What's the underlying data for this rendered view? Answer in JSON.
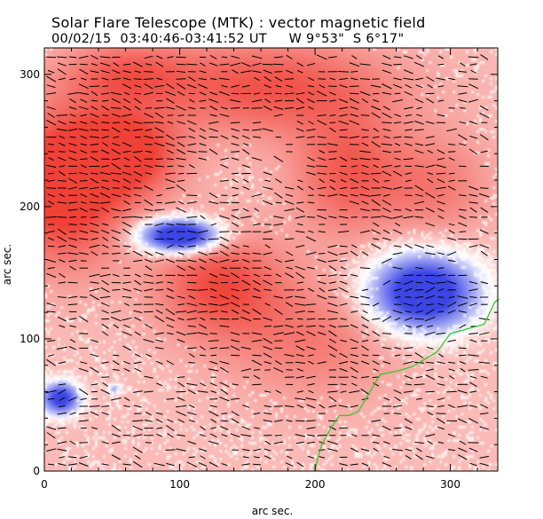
{
  "header": {
    "title": "Solar Flare Telescope (MTK) : vector magnetic field",
    "subtitle": "00/02/15  03:40:46-03:41:52 UT     W 9°53\"  S 6°17\""
  },
  "chart_data": {
    "type": "heatmap",
    "xlabel": "arc sec.",
    "ylabel": "arc sec.",
    "xlim": [
      0,
      335
    ],
    "ylim": [
      0,
      320
    ],
    "x_ticks": [
      0,
      100,
      200,
      300
    ],
    "y_ticks": [
      0,
      100,
      200,
      300
    ],
    "grid": false,
    "colors": {
      "positive_polarity": "#f0463c",
      "negative_polarity": "#3c46e6",
      "background": "#ffffff",
      "vectors": "#000000",
      "neutral_line": "#22cc22"
    },
    "positive_regions": [
      {
        "x": 15,
        "y": 215,
        "sx": 45,
        "sy": 55,
        "strength": 0.95
      },
      {
        "x": 60,
        "y": 240,
        "sx": 40,
        "sy": 30,
        "strength": 0.8
      },
      {
        "x": 130,
        "y": 140,
        "sx": 45,
        "sy": 40,
        "strength": 0.65
      },
      {
        "x": 165,
        "y": 290,
        "sx": 90,
        "sy": 35,
        "strength": 0.6
      },
      {
        "x": 225,
        "y": 225,
        "sx": 40,
        "sy": 45,
        "strength": 0.55
      },
      {
        "x": 60,
        "y": 300,
        "sx": 45,
        "sy": 25,
        "strength": 0.45
      },
      {
        "x": 290,
        "y": 215,
        "sx": 40,
        "sy": 40,
        "strength": 0.35
      },
      {
        "x": 200,
        "y": 100,
        "sx": 60,
        "sy": 45,
        "strength": 0.35
      }
    ],
    "negative_regions": [
      {
        "x": 100,
        "y": 178,
        "sx": 28,
        "sy": 12,
        "strength": 0.85
      },
      {
        "x": 280,
        "y": 135,
        "sx": 38,
        "sy": 28,
        "strength": 0.8
      },
      {
        "x": 12,
        "y": 55,
        "sx": 14,
        "sy": 12,
        "strength": 0.65
      },
      {
        "x": 52,
        "y": 62,
        "sx": 5,
        "sy": 4,
        "strength": 0.3
      }
    ],
    "neutral_line": [
      [
        200,
        0
      ],
      [
        202,
        10
      ],
      [
        205,
        20
      ],
      [
        212,
        33
      ],
      [
        218,
        42
      ],
      [
        225,
        42
      ],
      [
        232,
        45
      ],
      [
        248,
        73
      ],
      [
        262,
        76
      ],
      [
        272,
        79
      ],
      [
        290,
        90
      ],
      [
        300,
        104
      ],
      [
        325,
        111
      ],
      [
        333,
        128
      ],
      [
        336,
        130
      ]
    ]
  }
}
